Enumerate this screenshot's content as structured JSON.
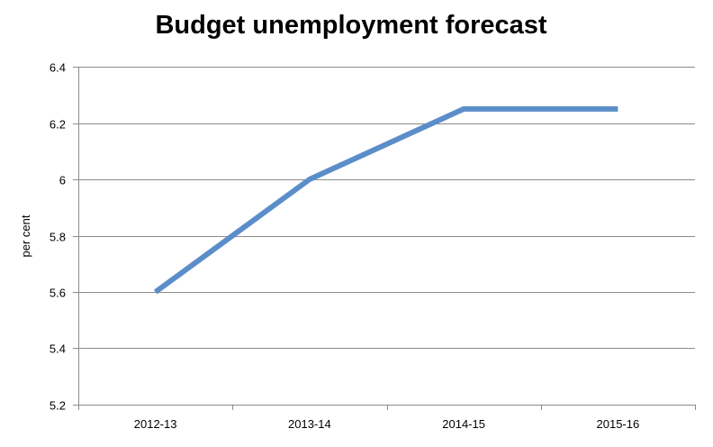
{
  "chart_data": {
    "type": "line",
    "title": "Budget unemployment forecast",
    "xlabel": "",
    "ylabel": "per cent",
    "categories": [
      "2012-13",
      "2013-14",
      "2014-15",
      "2015-16"
    ],
    "series": [
      {
        "values": [
          5.6,
          6.0,
          6.25,
          6.25
        ]
      }
    ],
    "ylim": [
      5.2,
      6.4
    ],
    "yticks": [
      5.2,
      5.4,
      5.6,
      5.8,
      6.0,
      6.2,
      6.4
    ],
    "ytick_labels": [
      "5.2",
      "5.4",
      "5.6",
      "5.8",
      "6",
      "6.2",
      "6.4"
    ],
    "grid": true,
    "legend": "none",
    "colors": {
      "line": "#5b8ec9",
      "grid": "#8c8c8c",
      "axis": "#8c8c8c",
      "text": "#000000"
    }
  }
}
